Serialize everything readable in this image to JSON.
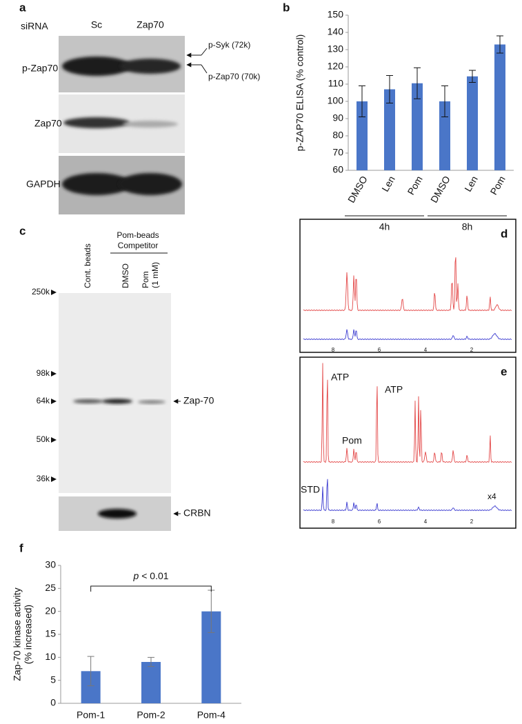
{
  "panel_a": {
    "letter": "a",
    "header": "siRNA",
    "lanes": [
      "Sc",
      "Zap70"
    ],
    "rows": [
      "p-Zap70",
      "Zap70",
      "GAPDH"
    ],
    "annotations": [
      "p-Syk (72k)",
      "p-Zap70 (70k)"
    ]
  },
  "panel_c": {
    "letter": "c",
    "lanes": [
      "Cont. beads",
      "DMSO",
      [
        "Pom",
        "(1 mM)"
      ]
    ],
    "group": [
      "Pom-beads",
      "Competitor"
    ],
    "markers": [
      "250k",
      "98k",
      "64k",
      "50k",
      "36k"
    ],
    "bands": [
      "Zap-70",
      "CRBN"
    ]
  },
  "panel_d": {
    "letter": "d",
    "ppm_ticks": [
      "8",
      "6",
      "4",
      "2"
    ]
  },
  "panel_e": {
    "letter": "e",
    "ppm_ticks": [
      "8",
      "6",
      "4",
      "2"
    ],
    "labels": [
      "ATP",
      "ATP",
      "Pom",
      "STD",
      "x4"
    ]
  },
  "chart_data": [
    {
      "type": "bar",
      "letter": "b",
      "ylabel": [
        "p-ZAP70 ELISA (% control)"
      ],
      "categories": [
        "DMSO",
        "Len",
        "Pom",
        "DMSO",
        "Len",
        "Pom"
      ],
      "values": [
        100,
        107,
        110.5,
        100,
        114.5,
        133
      ],
      "errors": [
        9,
        8,
        9,
        9,
        3.5,
        5
      ],
      "groups": [
        "4h",
        "8h"
      ],
      "color": "#4a76c8",
      "error_color": "#111",
      "ylim": [
        60,
        150
      ],
      "yticks": [
        60,
        70,
        80,
        90,
        100,
        110,
        120,
        130,
        140,
        150
      ]
    },
    {
      "type": "bar",
      "letter": "f",
      "ylabel": [
        "Zap-70 kinase activity",
        "(% increased)"
      ],
      "categories": [
        "Pom-1",
        "Pom-2",
        "Pom-4"
      ],
      "values": [
        7,
        9,
        20
      ],
      "errors": [
        3.2,
        1,
        4.6
      ],
      "annotation": {
        "italic": "p",
        "text": "< 0.01"
      },
      "color": "#4a76c8",
      "error_color": "#777",
      "ylim": [
        0,
        30
      ],
      "yticks": [
        0,
        5,
        10,
        15,
        20,
        25,
        30
      ]
    }
  ]
}
